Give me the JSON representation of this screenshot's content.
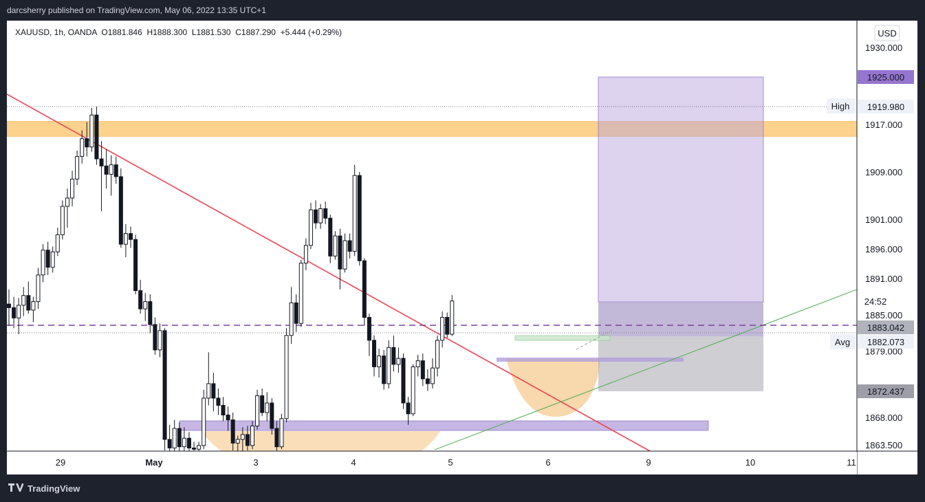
{
  "header": {
    "published_text": "darcsherry published on TradingView.com, May 06, 2022 13:35 UTC+1"
  },
  "footer": {
    "brand": "TradingView"
  },
  "symbol_bar": {
    "symbol": "XAUUSD, 1h, OANDA",
    "open": "O1881.846",
    "high": "H1888.300",
    "low": "L1881.530",
    "close": "C1887.290",
    "change": "+5.444 (+0.29%)"
  },
  "chart_data": {
    "type": "candlestick",
    "currency": "USD",
    "y_range": [
      1862,
      1935
    ],
    "price_ticks": [
      "1930.000",
      "1917.000",
      "1909.000",
      "1901.000",
      "1896.000",
      "1891.000",
      "1885.000",
      "1879.000",
      "1868.000",
      "1863.500"
    ],
    "x_ticks": [
      "29",
      "May",
      "3",
      "4",
      "5",
      "6",
      "9",
      "10",
      "11"
    ],
    "price_labels": {
      "target": "1925.000",
      "high_label": "High",
      "high_value": "1919.980",
      "countdown": "24:52",
      "last_price": "1883.042",
      "avg_label": "Avg",
      "avg_value": "1882.073",
      "stop": "1872.437"
    },
    "resistance_zone": [
      1915.0,
      1917.5
    ],
    "support_zones": [
      1866.5,
      1868.2
    ],
    "candles": [
      {
        "o": 1886.8,
        "h": 1889.2,
        "l": 1883.2,
        "c": 1886.2
      },
      {
        "o": 1886.2,
        "h": 1888.0,
        "l": 1882.8,
        "c": 1884.5
      },
      {
        "o": 1884.5,
        "h": 1887.8,
        "l": 1881.8,
        "c": 1886.6
      },
      {
        "o": 1886.6,
        "h": 1889.6,
        "l": 1884.8,
        "c": 1888.2
      },
      {
        "o": 1888.2,
        "h": 1890.5,
        "l": 1885.2,
        "c": 1885.8
      },
      {
        "o": 1885.8,
        "h": 1888.0,
        "l": 1883.8,
        "c": 1887.2
      },
      {
        "o": 1887.2,
        "h": 1892.8,
        "l": 1886.0,
        "c": 1891.6
      },
      {
        "o": 1891.6,
        "h": 1896.8,
        "l": 1890.4,
        "c": 1895.8
      },
      {
        "o": 1895.8,
        "h": 1897.2,
        "l": 1891.6,
        "c": 1892.9
      },
      {
        "o": 1892.9,
        "h": 1896.4,
        "l": 1892.0,
        "c": 1895.5
      },
      {
        "o": 1895.5,
        "h": 1899.6,
        "l": 1894.8,
        "c": 1898.4
      },
      {
        "o": 1898.4,
        "h": 1904.2,
        "l": 1897.6,
        "c": 1903.2
      },
      {
        "o": 1903.2,
        "h": 1906.2,
        "l": 1899.6,
        "c": 1904.6
      },
      {
        "o": 1904.6,
        "h": 1909.2,
        "l": 1903.2,
        "c": 1907.8
      },
      {
        "o": 1907.8,
        "h": 1912.6,
        "l": 1906.8,
        "c": 1911.6
      },
      {
        "o": 1911.6,
        "h": 1916.0,
        "l": 1910.4,
        "c": 1914.6
      },
      {
        "o": 1914.6,
        "h": 1917.4,
        "l": 1911.6,
        "c": 1913.2
      },
      {
        "o": 1913.2,
        "h": 1919.8,
        "l": 1912.4,
        "c": 1918.6
      },
      {
        "o": 1918.6,
        "h": 1920.0,
        "l": 1910.2,
        "c": 1911.2
      },
      {
        "o": 1911.2,
        "h": 1914.2,
        "l": 1902.4,
        "c": 1910.0
      },
      {
        "o": 1910.0,
        "h": 1912.8,
        "l": 1906.2,
        "c": 1908.6
      },
      {
        "o": 1908.6,
        "h": 1911.8,
        "l": 1905.0,
        "c": 1910.2
      },
      {
        "o": 1910.2,
        "h": 1911.6,
        "l": 1907.0,
        "c": 1908.2
      },
      {
        "o": 1908.2,
        "h": 1909.6,
        "l": 1896.2,
        "c": 1896.8
      },
      {
        "o": 1896.8,
        "h": 1900.2,
        "l": 1894.6,
        "c": 1898.6
      },
      {
        "o": 1898.6,
        "h": 1899.8,
        "l": 1896.2,
        "c": 1897.6
      },
      {
        "o": 1897.6,
        "h": 1898.4,
        "l": 1888.4,
        "c": 1889.0
      },
      {
        "o": 1889.0,
        "h": 1890.8,
        "l": 1885.2,
        "c": 1886.0
      },
      {
        "o": 1886.0,
        "h": 1888.6,
        "l": 1884.0,
        "c": 1887.2
      },
      {
        "o": 1887.2,
        "h": 1888.4,
        "l": 1882.0,
        "c": 1883.4
      },
      {
        "o": 1883.4,
        "h": 1884.6,
        "l": 1878.4,
        "c": 1879.2
      },
      {
        "o": 1879.2,
        "h": 1883.6,
        "l": 1878.0,
        "c": 1882.4
      },
      {
        "o": 1882.4,
        "h": 1882.8,
        "l": 1862.6,
        "c": 1864.4
      },
      {
        "o": 1864.4,
        "h": 1866.8,
        "l": 1862.2,
        "c": 1863.0
      },
      {
        "o": 1863.0,
        "h": 1867.6,
        "l": 1862.0,
        "c": 1866.2
      },
      {
        "o": 1866.2,
        "h": 1867.2,
        "l": 1862.2,
        "c": 1863.2
      },
      {
        "o": 1863.2,
        "h": 1866.4,
        "l": 1862.0,
        "c": 1864.6
      },
      {
        "o": 1864.6,
        "h": 1865.6,
        "l": 1862.0,
        "c": 1863.0
      },
      {
        "o": 1863.0,
        "h": 1864.0,
        "l": 1862.0,
        "c": 1862.8
      },
      {
        "o": 1862.8,
        "h": 1864.0,
        "l": 1862.0,
        "c": 1863.4
      },
      {
        "o": 1863.4,
        "h": 1872.6,
        "l": 1862.8,
        "c": 1871.2
      },
      {
        "o": 1871.2,
        "h": 1878.8,
        "l": 1870.0,
        "c": 1873.6
      },
      {
        "o": 1873.6,
        "h": 1875.4,
        "l": 1869.0,
        "c": 1871.2
      },
      {
        "o": 1871.2,
        "h": 1872.8,
        "l": 1868.4,
        "c": 1870.0
      },
      {
        "o": 1870.0,
        "h": 1871.4,
        "l": 1867.4,
        "c": 1868.4
      },
      {
        "o": 1868.4,
        "h": 1869.8,
        "l": 1865.8,
        "c": 1867.6
      },
      {
        "o": 1867.6,
        "h": 1868.8,
        "l": 1862.6,
        "c": 1863.8
      },
      {
        "o": 1863.8,
        "h": 1865.0,
        "l": 1862.2,
        "c": 1864.4
      },
      {
        "o": 1864.4,
        "h": 1866.4,
        "l": 1862.4,
        "c": 1865.2
      },
      {
        "o": 1865.2,
        "h": 1866.6,
        "l": 1862.6,
        "c": 1863.4
      },
      {
        "o": 1863.4,
        "h": 1867.4,
        "l": 1862.8,
        "c": 1866.6
      },
      {
        "o": 1866.6,
        "h": 1872.6,
        "l": 1866.0,
        "c": 1871.6
      },
      {
        "o": 1871.6,
        "h": 1872.8,
        "l": 1868.2,
        "c": 1868.8
      },
      {
        "o": 1868.8,
        "h": 1872.2,
        "l": 1867.4,
        "c": 1870.4
      },
      {
        "o": 1870.4,
        "h": 1871.2,
        "l": 1865.2,
        "c": 1866.2
      },
      {
        "o": 1866.2,
        "h": 1867.4,
        "l": 1862.4,
        "c": 1863.2
      },
      {
        "o": 1863.2,
        "h": 1868.6,
        "l": 1862.8,
        "c": 1867.8
      },
      {
        "o": 1867.8,
        "h": 1882.8,
        "l": 1867.2,
        "c": 1881.6
      },
      {
        "o": 1881.6,
        "h": 1889.6,
        "l": 1880.2,
        "c": 1887.0
      },
      {
        "o": 1887.0,
        "h": 1888.4,
        "l": 1882.2,
        "c": 1883.6
      },
      {
        "o": 1883.6,
        "h": 1894.2,
        "l": 1883.0,
        "c": 1893.6
      },
      {
        "o": 1893.6,
        "h": 1897.8,
        "l": 1892.4,
        "c": 1896.6
      },
      {
        "o": 1896.6,
        "h": 1903.8,
        "l": 1896.0,
        "c": 1902.6
      },
      {
        "o": 1902.6,
        "h": 1904.2,
        "l": 1899.4,
        "c": 1900.4
      },
      {
        "o": 1900.4,
        "h": 1903.6,
        "l": 1899.4,
        "c": 1902.8
      },
      {
        "o": 1902.8,
        "h": 1904.0,
        "l": 1900.2,
        "c": 1901.2
      },
      {
        "o": 1901.2,
        "h": 1901.8,
        "l": 1893.6,
        "c": 1894.8
      },
      {
        "o": 1894.8,
        "h": 1899.0,
        "l": 1894.2,
        "c": 1898.2
      },
      {
        "o": 1898.2,
        "h": 1899.4,
        "l": 1889.2,
        "c": 1892.6
      },
      {
        "o": 1892.6,
        "h": 1898.6,
        "l": 1892.0,
        "c": 1897.4
      },
      {
        "o": 1897.4,
        "h": 1898.6,
        "l": 1894.4,
        "c": 1895.6
      },
      {
        "o": 1895.6,
        "h": 1910.2,
        "l": 1894.8,
        "c": 1908.4
      },
      {
        "o": 1908.4,
        "h": 1909.0,
        "l": 1893.2,
        "c": 1894.0
      },
      {
        "o": 1894.0,
        "h": 1894.4,
        "l": 1883.2,
        "c": 1884.6
      },
      {
        "o": 1884.6,
        "h": 1885.2,
        "l": 1878.2,
        "c": 1880.8
      },
      {
        "o": 1880.8,
        "h": 1881.6,
        "l": 1874.8,
        "c": 1876.4
      },
      {
        "o": 1876.4,
        "h": 1879.4,
        "l": 1874.6,
        "c": 1878.2
      },
      {
        "o": 1878.2,
        "h": 1879.2,
        "l": 1872.6,
        "c": 1873.6
      },
      {
        "o": 1873.6,
        "h": 1880.8,
        "l": 1872.8,
        "c": 1879.6
      },
      {
        "o": 1879.6,
        "h": 1881.6,
        "l": 1875.6,
        "c": 1876.8
      },
      {
        "o": 1876.8,
        "h": 1879.6,
        "l": 1875.4,
        "c": 1877.8
      },
      {
        "o": 1877.8,
        "h": 1878.6,
        "l": 1869.4,
        "c": 1870.4
      },
      {
        "o": 1870.4,
        "h": 1871.4,
        "l": 1866.8,
        "c": 1868.6
      },
      {
        "o": 1868.6,
        "h": 1876.8,
        "l": 1868.2,
        "c": 1876.4
      },
      {
        "o": 1876.4,
        "h": 1878.4,
        "l": 1874.8,
        "c": 1877.4
      },
      {
        "o": 1877.4,
        "h": 1878.6,
        "l": 1873.2,
        "c": 1874.4
      },
      {
        "o": 1874.4,
        "h": 1876.0,
        "l": 1872.4,
        "c": 1873.6
      },
      {
        "o": 1873.6,
        "h": 1877.8,
        "l": 1872.8,
        "c": 1876.2
      },
      {
        "o": 1876.2,
        "h": 1881.6,
        "l": 1874.8,
        "c": 1880.8
      },
      {
        "o": 1880.8,
        "h": 1885.6,
        "l": 1879.6,
        "c": 1884.6
      },
      {
        "o": 1884.6,
        "h": 1885.4,
        "l": 1881.2,
        "c": 1881.8
      },
      {
        "o": 1881.8,
        "h": 1888.3,
        "l": 1881.5,
        "c": 1887.3
      }
    ]
  },
  "colors": {
    "background": "#ffffff",
    "frame": "#1e222d",
    "up_candle": "#ffffff",
    "down_candle": "#131722",
    "trendline": "#ef4452",
    "support_line": "#4caf50",
    "purple_dashed": "#7b3fa0",
    "zone_orange": "#fbbf5d",
    "zone_purple": "#b39ddb"
  }
}
